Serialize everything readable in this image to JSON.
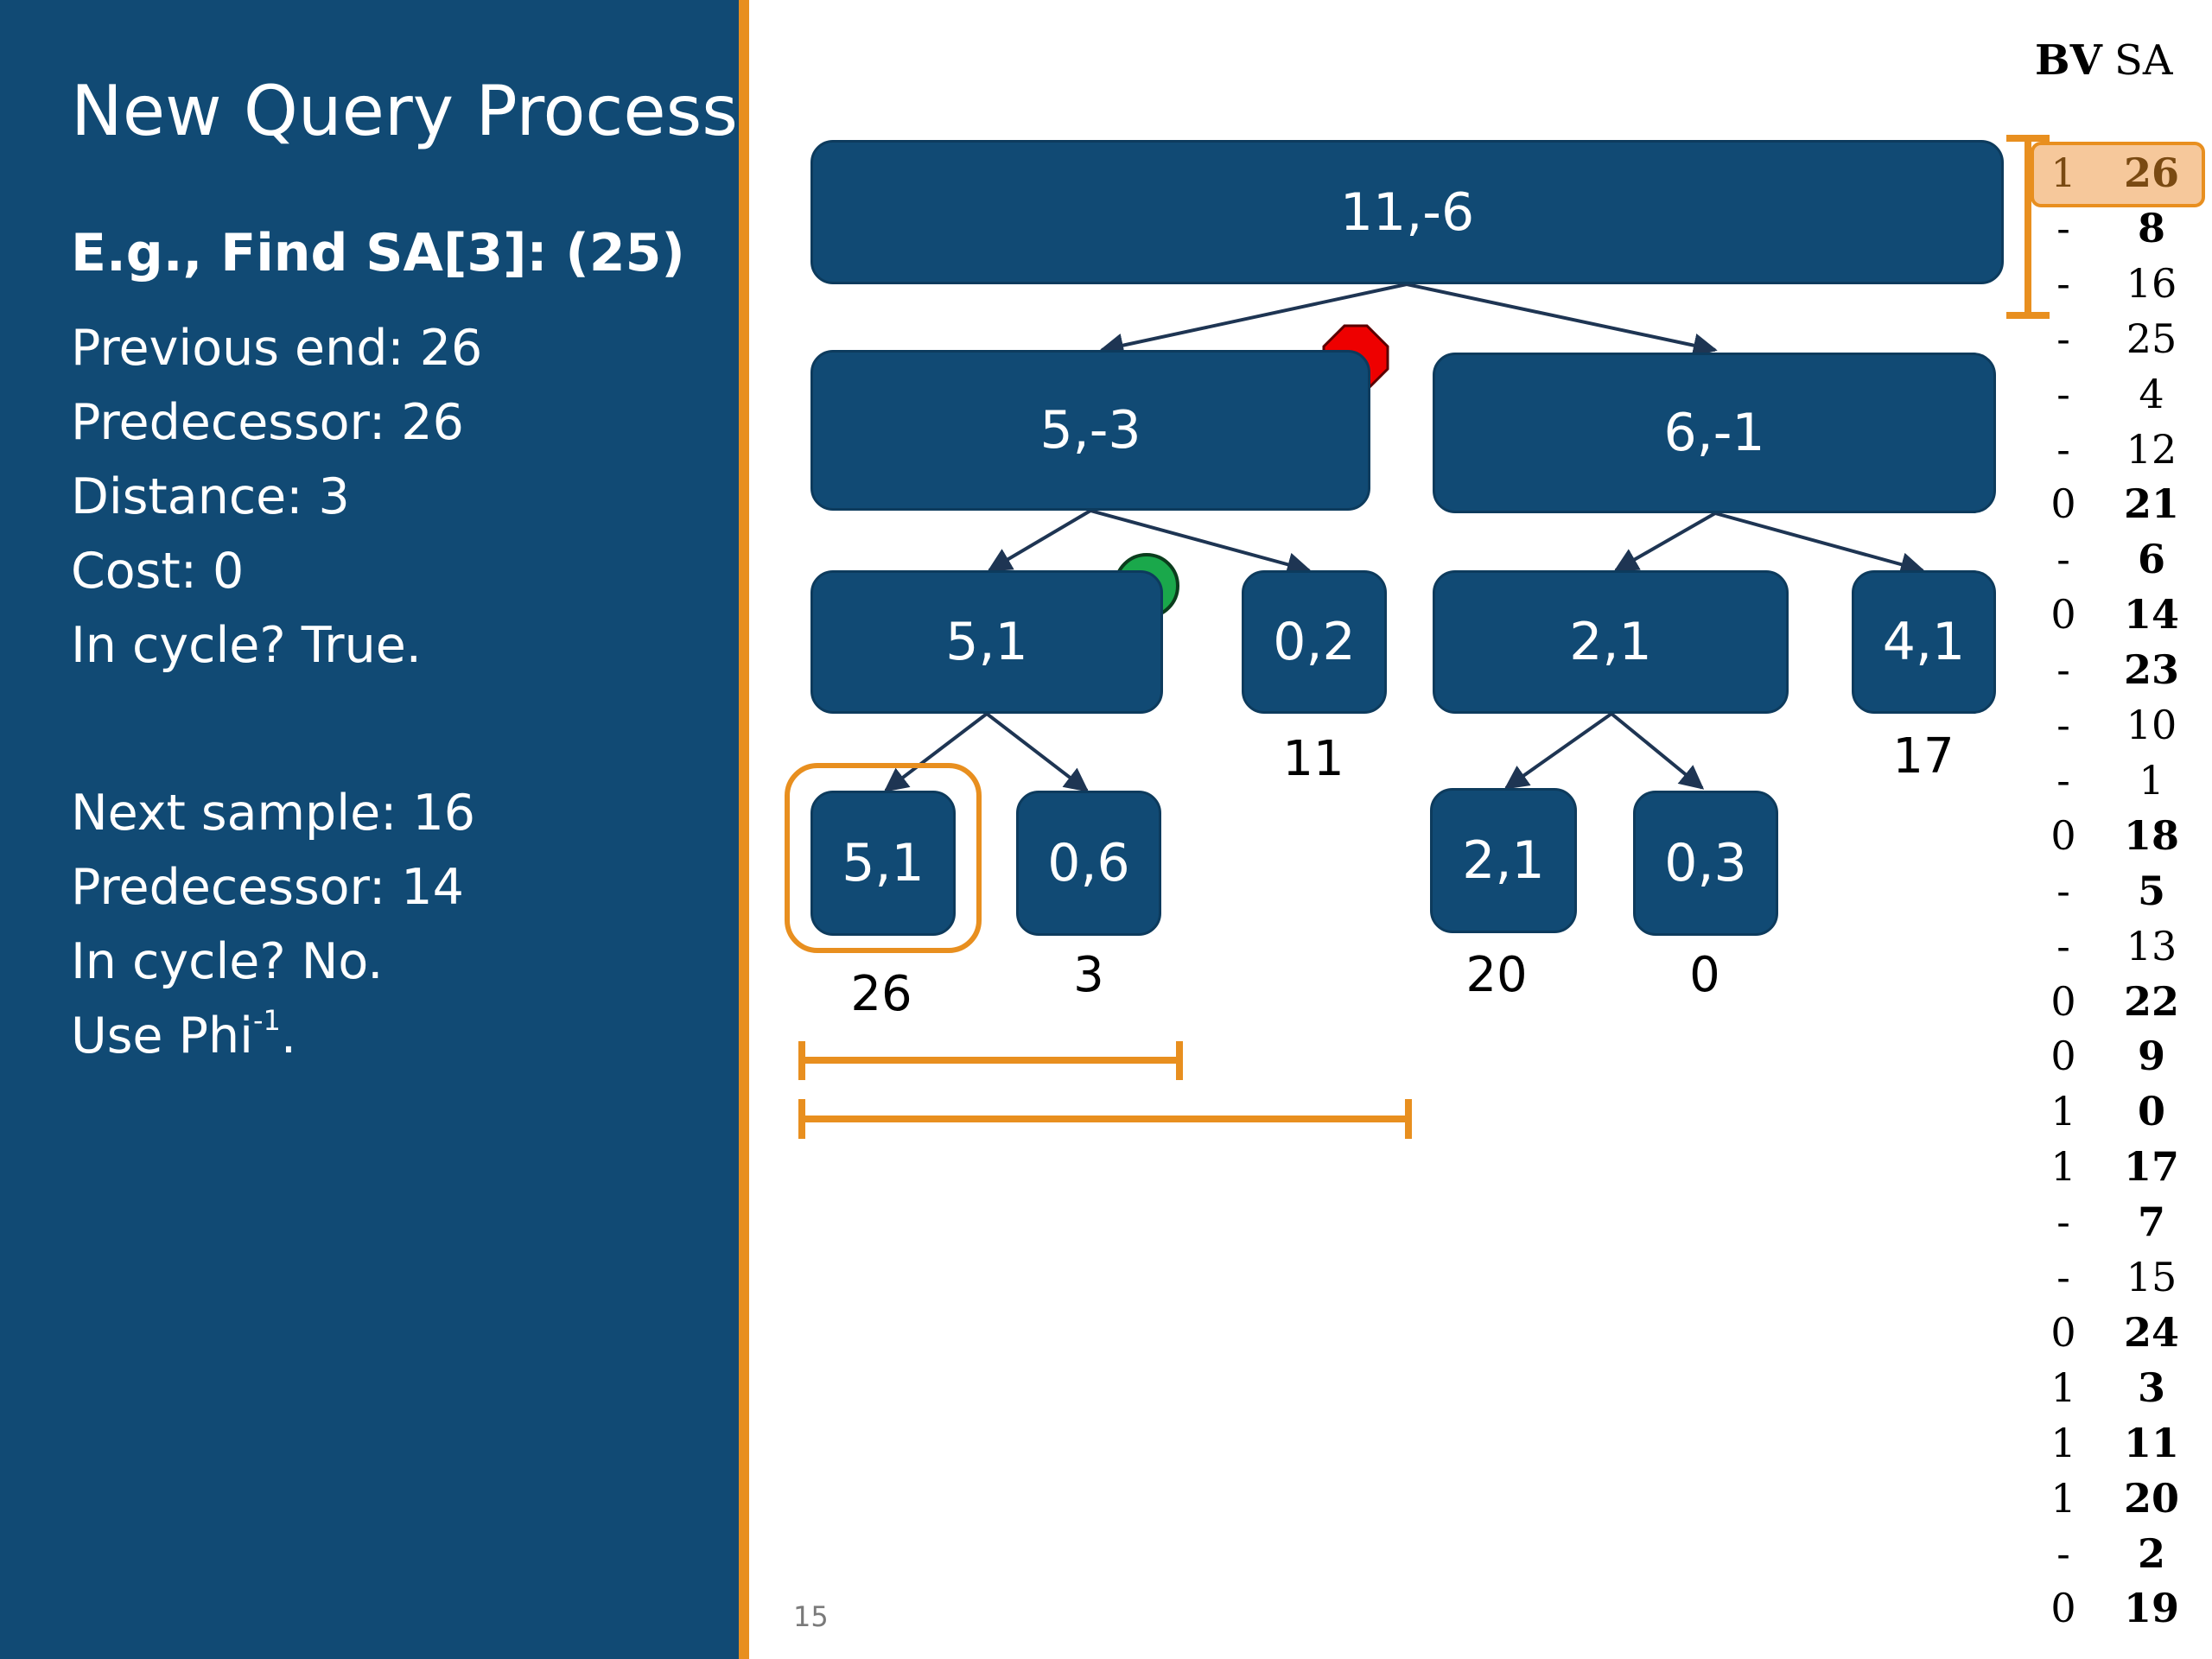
{
  "slide": {
    "title": "New Query Process",
    "example": "E.g., Find SA[3]: (25)",
    "info_lines": [
      "Previous end: 26",
      "Predecessor: 26",
      "Distance: 3",
      "Cost: 0",
      "In cycle? True."
    ],
    "info_lines_2": [
      "Next sample: 16",
      "Predecessor: 14",
      "In cycle? No."
    ],
    "phi_prefix": "Use Phi",
    "phi_sup": "-1",
    "phi_suffix": ".",
    "page_number": "15"
  },
  "tree": {
    "root": "11,-6",
    "level1": [
      "5,-3",
      "6,-1"
    ],
    "level2": [
      "5,1",
      "0,2",
      "2,1",
      "4,1"
    ],
    "level3": [
      "5,1",
      "0,6",
      "2,1",
      "0,3"
    ],
    "leaf_labels": [
      "26",
      "3",
      "20",
      "0",
      "11",
      "17"
    ]
  },
  "markers": {
    "stop_color": "#ee0000",
    "go_color": "#1aa84b",
    "accent_color": "#e88f1f",
    "node_color": "#114a74"
  },
  "table": {
    "bv_header": "BV",
    "sa_header": "SA",
    "bv": [
      "1",
      "-",
      "-",
      "-",
      "-",
      "-",
      "0",
      "-",
      "0",
      "-",
      "-",
      "-",
      "0",
      "-",
      "-",
      "0",
      "0",
      "1",
      "1",
      "-",
      "-",
      "0",
      "1",
      "1",
      "1",
      "-",
      "0"
    ],
    "sa": [
      "26",
      "8",
      "16",
      "25",
      "4",
      "12",
      "21",
      "6",
      "14",
      "23",
      "10",
      "1",
      "18",
      "5",
      "13",
      "22",
      "9",
      "0",
      "17",
      "7",
      "15",
      "24",
      "3",
      "11",
      "20",
      "2",
      "19"
    ],
    "sa_light_rows": [
      2,
      3,
      4,
      5,
      10,
      11,
      14,
      20
    ],
    "highlight_row": 0
  }
}
